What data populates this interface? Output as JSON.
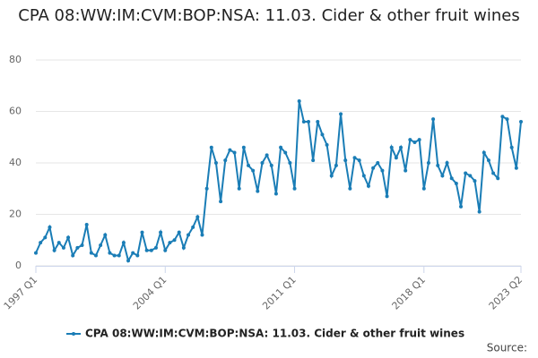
{
  "chart_data": {
    "type": "line",
    "title": "CPA 08:WW:IM:CVM:BOP:NSA: 11.03. Cider & other fruit wines",
    "categories": [
      "1997 Q1",
      null,
      null,
      null,
      null,
      null,
      null,
      null,
      null,
      null,
      null,
      null,
      null,
      null,
      null,
      null,
      null,
      null,
      null,
      null,
      null,
      null,
      null,
      null,
      null,
      null,
      null,
      null,
      "2004 Q1",
      null,
      null,
      null,
      null,
      null,
      null,
      null,
      null,
      null,
      null,
      null,
      null,
      null,
      null,
      null,
      null,
      null,
      null,
      null,
      null,
      null,
      null,
      null,
      null,
      null,
      null,
      null,
      "2011 Q1",
      null,
      null,
      null,
      null,
      null,
      null,
      null,
      null,
      null,
      null,
      null,
      null,
      null,
      null,
      null,
      null,
      null,
      null,
      null,
      null,
      null,
      null,
      null,
      null,
      null,
      null,
      null,
      "2018 Q1",
      null,
      null,
      null,
      null,
      null,
      null,
      null,
      null,
      null,
      null,
      null,
      null,
      null,
      null,
      null,
      null,
      null,
      null,
      null,
      null,
      "2023 Q2"
    ],
    "series": [
      {
        "name": "CPA 08:WW:IM:CVM:BOP:NSA: 11.03. Cider & other fruit wines",
        "color": "#1a7db6",
        "values": [
          5,
          9,
          11,
          15,
          6,
          9,
          7,
          11,
          4,
          7,
          8,
          16,
          5,
          4,
          8,
          12,
          5,
          4,
          4,
          9,
          2,
          5,
          4,
          13,
          6,
          6,
          7,
          13,
          6,
          9,
          10,
          13,
          7,
          12,
          15,
          19,
          12,
          30,
          46,
          40,
          25,
          41,
          45,
          44,
          30,
          46,
          39,
          37,
          29,
          40,
          43,
          39,
          28,
          46,
          44,
          40,
          30,
          64,
          56,
          56,
          41,
          56,
          51,
          47,
          35,
          39,
          59,
          41,
          30,
          42,
          41,
          35,
          31,
          38,
          40,
          37,
          27,
          46,
          42,
          46,
          37,
          49,
          48,
          49,
          30,
          40,
          57,
          39,
          35,
          40,
          34,
          32,
          23,
          36,
          35,
          33,
          21,
          44,
          41,
          36,
          34,
          58,
          57,
          46,
          38,
          56
        ]
      }
    ],
    "ylim": [
      0,
      80
    ],
    "yticks": [
      0,
      20,
      40,
      60,
      80
    ],
    "grid": true,
    "source_label": "Source:"
  }
}
